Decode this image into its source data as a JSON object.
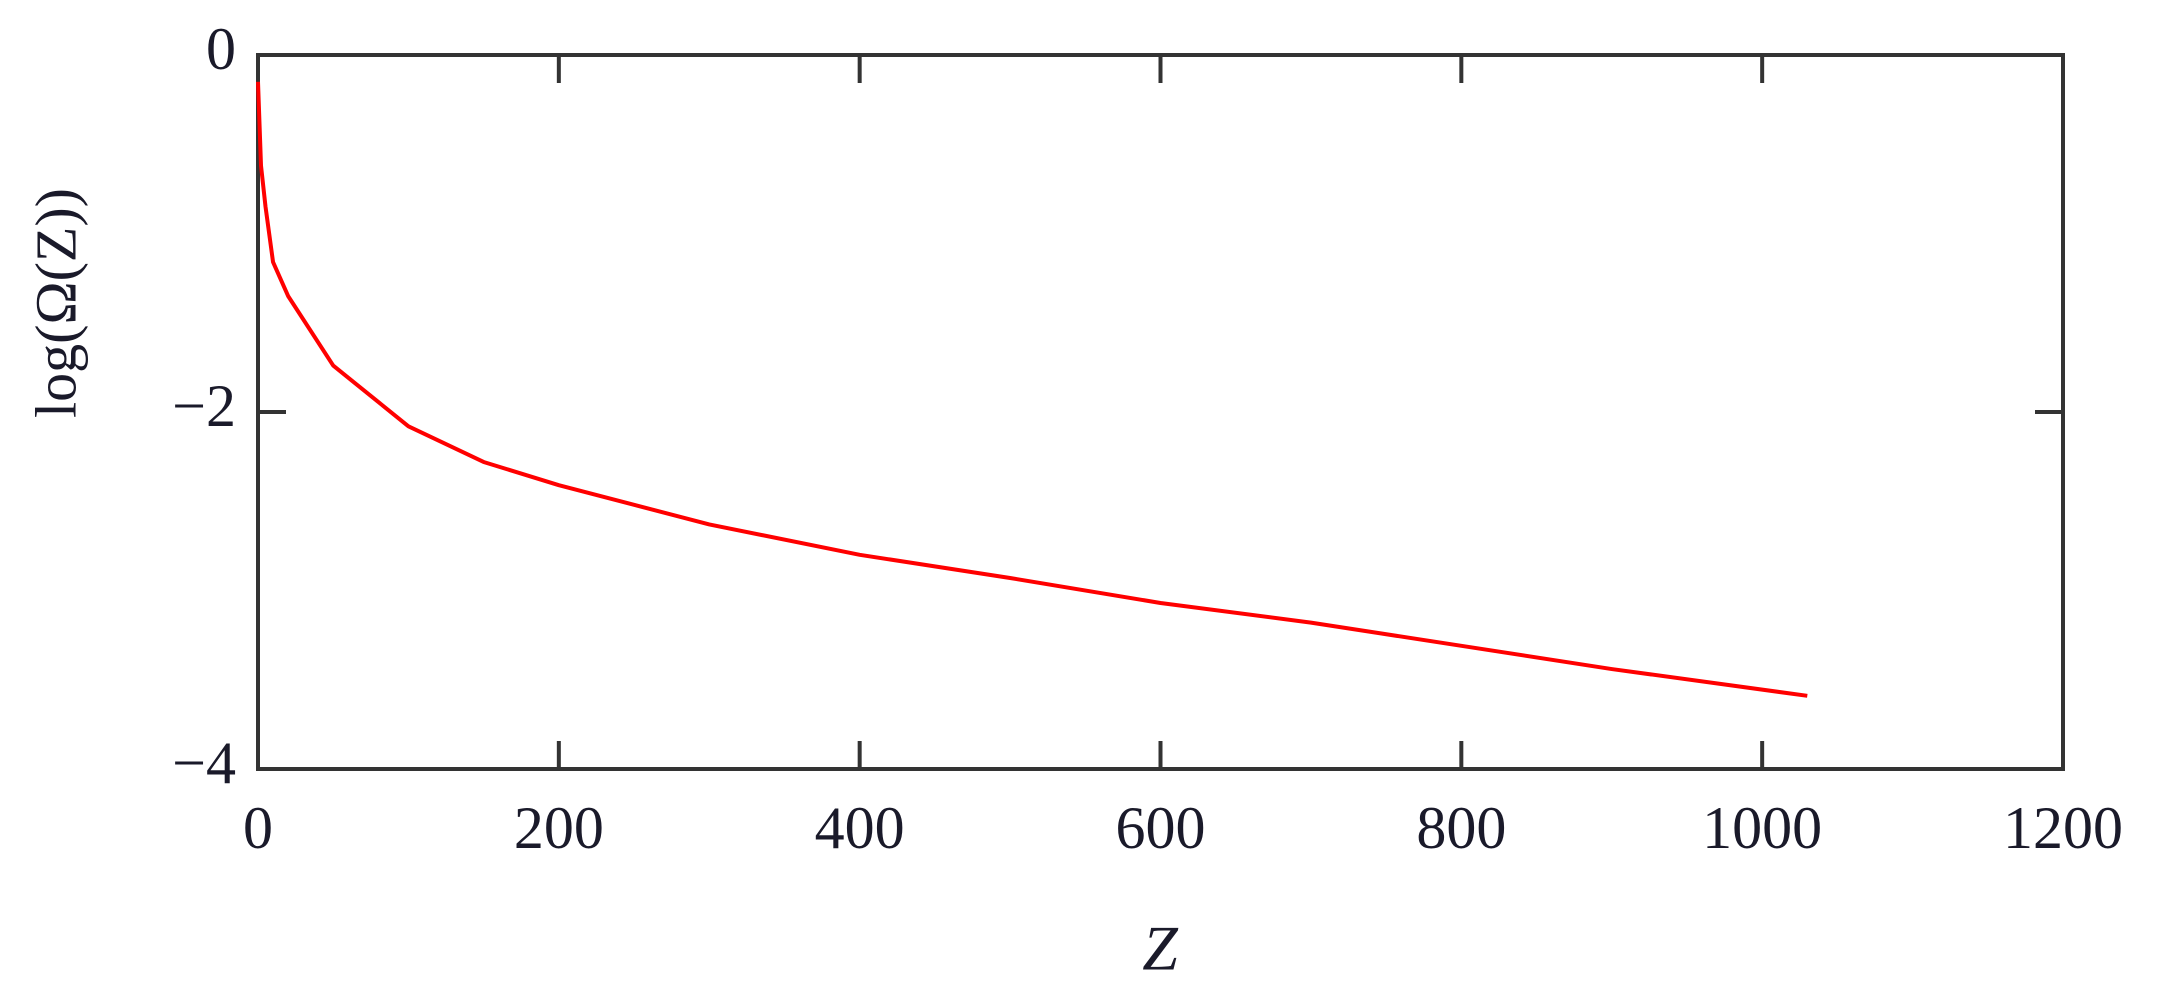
{
  "chart_data": {
    "type": "line",
    "x_label": "Z",
    "y_label": "log(Ω(Z))",
    "x": [
      0,
      2,
      5,
      10,
      20,
      50,
      100,
      150,
      200,
      300,
      400,
      500,
      600,
      700,
      800,
      900,
      1030
    ],
    "series": [
      {
        "color": "#ff0000",
        "values": [
          -0.15,
          -0.62,
          -0.85,
          -1.16,
          -1.35,
          -1.74,
          -2.08,
          -2.28,
          -2.41,
          -2.63,
          -2.8,
          -2.93,
          -3.07,
          -3.18,
          -3.31,
          -3.44,
          -3.59
        ]
      }
    ],
    "xlim": [
      0,
      1200
    ],
    "ylim": [
      -4,
      0
    ],
    "xticks": [
      0,
      200,
      400,
      600,
      800,
      1000,
      1200
    ],
    "yticks": [
      {
        "value": 0,
        "label": "0"
      },
      {
        "value": -2,
        "label": "−2"
      },
      {
        "value": -4,
        "label": "−4"
      }
    ],
    "grid": false
  }
}
